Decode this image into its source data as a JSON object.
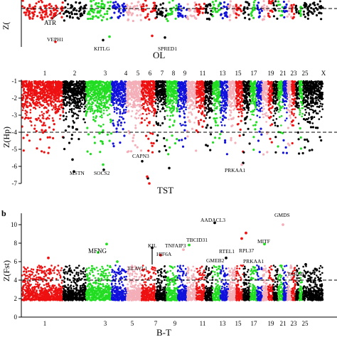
{
  "palette": {
    "red": "#ee1111",
    "black": "#000000",
    "green": "#22dd22",
    "blue": "#1111dd",
    "pink": "#f4aeb8"
  },
  "chart_data": [
    {
      "type": "scatter",
      "panel": "top (partial)",
      "title": "OL",
      "ylabel": "Z(",
      "y_threshold": -4,
      "gene_labels": [
        "ATR",
        "VEPH1",
        "KITLG",
        "SPRED1"
      ]
    },
    {
      "type": "scatter",
      "panel": "middle",
      "title": "TST",
      "ylabel": "Z(Hp)",
      "ylim": [
        -7,
        0
      ],
      "yticks": [
        -1,
        -2,
        -3,
        -4,
        -5,
        -6,
        -7
      ],
      "y_threshold": -4,
      "chromosome_labels": [
        "1",
        "2",
        "3",
        "4",
        "5",
        "6",
        "7",
        "8",
        "9",
        "11",
        "13",
        "15",
        "17",
        "19",
        "21",
        "23",
        "25",
        "X"
      ],
      "gene_labels": [
        "MSTN",
        "SOCS2",
        "CAPN3",
        "PRKAA1"
      ]
    },
    {
      "type": "scatter",
      "panel": "bottom",
      "letter": "b",
      "title": "B-T",
      "ylabel": "Z(Fst)",
      "ylim": [
        0,
        10
      ],
      "yticks": [
        0,
        2,
        4,
        6,
        8,
        10
      ],
      "y_threshold": 4,
      "chromosome_labels": [
        "1",
        "3",
        "5",
        "7",
        "9",
        "11",
        "13",
        "15",
        "17",
        "19",
        "21",
        "23",
        "25"
      ],
      "gene_labels": [
        "MFNG",
        "KIL",
        "HIF6A",
        "ELAVL1",
        "TNFAIP3",
        "TBCID31",
        "AADACL3",
        "GMEB2",
        "RTEL1",
        "RPL37",
        "PRKAA1",
        "MITF",
        "GMDS",
        "TARBP1"
      ]
    }
  ]
}
